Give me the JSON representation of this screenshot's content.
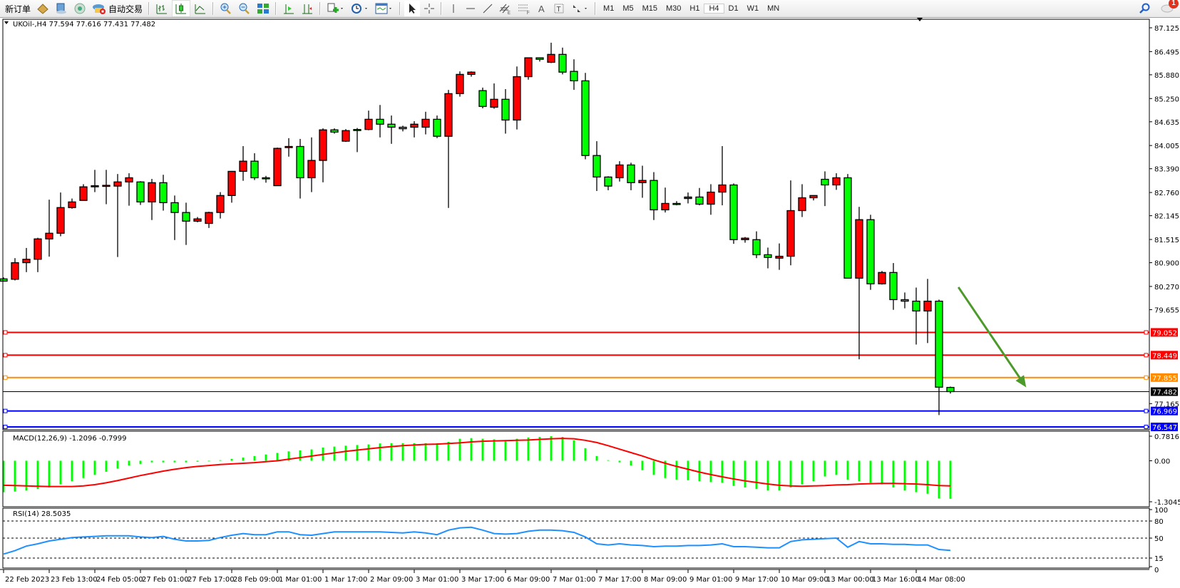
{
  "toolbar": {
    "new_order_label": "新订单",
    "auto_trading_label": "自动交易",
    "icons": [
      "metaeditor-icon",
      "terminal-icon",
      "signals-icon",
      "auto-trading-icon",
      "bar-chart-icon",
      "candlestick-icon",
      "line-chart-icon",
      "zoom-in-icon",
      "zoom-out-icon",
      "tile-windows-icon",
      "auto-scroll-icon",
      "chart-shift-icon",
      "indicators-icon",
      "periods-clock-icon",
      "templates-icon",
      "cursor-icon",
      "crosshair-icon",
      "vertical-line-icon",
      "horizontal-line-icon",
      "trendline-icon",
      "equidistant-channel-icon",
      "fibonacci-icon",
      "text-icon",
      "text-label-icon",
      "arrows-icon"
    ],
    "periods": [
      "M1",
      "M5",
      "M15",
      "M30",
      "H1",
      "H4",
      "D1",
      "W1",
      "MN"
    ],
    "active_period": "H4",
    "notification_count": "1"
  },
  "chart_data": {
    "type": "candlestick",
    "symbol_header": "UKOil-,H4  77.594 77.616 77.431 77.482",
    "up_color": "#ff0000",
    "down_color": "#00ff00",
    "candles_ohlc": [
      [
        80.47,
        80.51,
        80.41,
        80.41
      ],
      [
        80.46,
        81.02,
        80.43,
        80.9
      ],
      [
        80.9,
        81.29,
        80.65,
        80.99
      ],
      [
        80.99,
        81.56,
        80.65,
        81.53
      ],
      [
        81.53,
        82.57,
        81.06,
        81.68
      ],
      [
        81.68,
        82.76,
        81.6,
        82.36
      ],
      [
        82.36,
        82.6,
        82.33,
        82.51
      ],
      [
        82.55,
        82.98,
        82.55,
        82.91
      ],
      [
        82.91,
        83.36,
        82.77,
        82.94
      ],
      [
        82.94,
        83.36,
        82.45,
        82.95
      ],
      [
        82.93,
        83.25,
        81.05,
        83.04
      ],
      [
        83.04,
        83.27,
        82.41,
        83.15
      ],
      [
        83.04,
        83.06,
        82.43,
        82.51
      ],
      [
        82.51,
        83.12,
        82.03,
        83.02
      ],
      [
        83.02,
        83.23,
        82.28,
        82.49
      ],
      [
        82.49,
        82.68,
        81.5,
        82.23
      ],
      [
        82.23,
        82.49,
        81.37,
        82.0
      ],
      [
        82.0,
        82.11,
        81.97,
        82.06
      ],
      [
        81.94,
        82.25,
        81.82,
        82.23
      ],
      [
        82.23,
        82.77,
        82.07,
        82.68
      ],
      [
        82.68,
        83.33,
        82.49,
        83.32
      ],
      [
        83.32,
        83.99,
        83.07,
        83.59
      ],
      [
        83.59,
        83.8,
        83.09,
        83.15
      ],
      [
        83.15,
        83.2,
        83.02,
        83.14
      ],
      [
        82.94,
        83.95,
        82.94,
        83.93
      ],
      [
        83.95,
        84.2,
        83.71,
        83.98
      ],
      [
        83.98,
        84.18,
        82.6,
        83.15
      ],
      [
        83.15,
        84.22,
        82.77,
        83.61
      ],
      [
        83.61,
        84.46,
        83.03,
        84.42
      ],
      [
        84.42,
        84.46,
        84.32,
        84.36
      ],
      [
        84.12,
        84.44,
        84.1,
        84.4
      ],
      [
        84.43,
        84.47,
        83.83,
        84.42
      ],
      [
        84.43,
        84.93,
        84.41,
        84.7
      ],
      [
        84.7,
        85.08,
        84.22,
        84.57
      ],
      [
        84.57,
        84.8,
        84.05,
        84.49
      ],
      [
        84.49,
        84.53,
        84.38,
        84.45
      ],
      [
        84.49,
        84.65,
        84.22,
        84.57
      ],
      [
        84.49,
        84.9,
        84.3,
        84.7
      ],
      [
        84.7,
        84.8,
        84.2,
        84.25
      ],
      [
        84.25,
        85.48,
        82.35,
        85.38
      ],
      [
        85.38,
        85.97,
        85.3,
        85.89
      ],
      [
        85.89,
        85.97,
        85.83,
        85.95
      ],
      [
        85.46,
        85.54,
        84.99,
        85.04
      ],
      [
        85.02,
        85.65,
        84.98,
        85.23
      ],
      [
        85.23,
        85.5,
        84.32,
        84.68
      ],
      [
        84.68,
        86.1,
        84.43,
        85.83
      ],
      [
        85.83,
        86.33,
        85.75,
        86.33
      ],
      [
        86.33,
        86.33,
        86.23,
        86.29
      ],
      [
        86.21,
        86.73,
        86.19,
        86.42
      ],
      [
        86.42,
        86.6,
        85.89,
        85.95
      ],
      [
        85.97,
        86.29,
        85.48,
        85.72
      ],
      [
        85.72,
        85.93,
        83.64,
        83.74
      ],
      [
        83.74,
        84.12,
        82.8,
        83.17
      ],
      [
        83.17,
        83.19,
        82.82,
        82.93
      ],
      [
        83.15,
        83.59,
        83.05,
        83.49
      ],
      [
        83.49,
        83.55,
        82.82,
        83.02
      ],
      [
        83.02,
        83.47,
        82.62,
        83.08
      ],
      [
        83.08,
        83.3,
        82.03,
        82.3
      ],
      [
        82.3,
        82.89,
        82.23,
        82.47
      ],
      [
        82.47,
        82.53,
        82.42,
        82.46
      ],
      [
        82.6,
        82.76,
        82.47,
        82.64
      ],
      [
        82.64,
        82.88,
        82.42,
        82.45
      ],
      [
        82.45,
        82.98,
        82.17,
        82.77
      ],
      [
        82.77,
        83.99,
        82.42,
        82.96
      ],
      [
        82.96,
        83.0,
        81.4,
        81.51
      ],
      [
        81.51,
        81.58,
        81.43,
        81.55
      ],
      [
        81.51,
        81.73,
        81.02,
        81.11
      ],
      [
        81.11,
        81.3,
        80.75,
        81.04
      ],
      [
        81.02,
        81.41,
        80.71,
        81.07
      ],
      [
        81.07,
        83.08,
        80.83,
        82.28
      ],
      [
        82.28,
        82.98,
        82.11,
        82.62
      ],
      [
        82.62,
        82.68,
        82.55,
        82.68
      ],
      [
        83.11,
        83.32,
        82.4,
        82.96
      ],
      [
        82.96,
        83.27,
        82.83,
        83.15
      ],
      [
        83.15,
        83.25,
        80.49,
        80.49
      ],
      [
        80.49,
        82.38,
        78.34,
        82.04
      ],
      [
        82.04,
        82.17,
        80.18,
        80.34
      ],
      [
        80.34,
        80.68,
        80.32,
        80.64
      ],
      [
        80.64,
        80.89,
        79.65,
        79.92
      ],
      [
        79.92,
        80.11,
        79.69,
        79.88
      ],
      [
        79.88,
        80.24,
        78.73,
        79.62
      ],
      [
        79.62,
        80.47,
        78.77,
        79.88
      ],
      [
        79.88,
        79.92,
        76.86,
        77.6
      ],
      [
        77.594,
        77.616,
        77.431,
        77.482
      ]
    ],
    "price_ticks": [
      "87.125",
      "86.495",
      "85.880",
      "85.250",
      "84.635",
      "84.005",
      "83.390",
      "82.760",
      "82.145",
      "81.515",
      "80.900",
      "80.270",
      "79.655",
      "77.165"
    ],
    "time_labels": [
      "22 Feb 2023",
      "23 Feb 13:00",
      "24 Feb 05:00",
      "27 Feb 01:00",
      "27 Feb 17:00",
      "28 Feb 09:00",
      "1 Mar 01:00",
      "1 Mar 17:00",
      "2 Mar 09:00",
      "3 Mar 01:00",
      "3 Mar 17:00",
      "6 Mar 09:00",
      "7 Mar 01:00",
      "7 Mar 17:00",
      "8 Mar 09:00",
      "9 Mar 01:00",
      "9 Mar 17:00",
      "10 Mar 09:00",
      "13 Mar 00:00",
      "13 Mar 16:00",
      "14 Mar 08:00"
    ],
    "horizontal_lines": [
      {
        "price": 79.052,
        "label": "79.052",
        "color": "#ff0000"
      },
      {
        "price": 78.449,
        "label": "78.449",
        "color": "#ff0000"
      },
      {
        "price": 77.855,
        "label": "77.855",
        "color": "#ff8c00"
      },
      {
        "price": 77.482,
        "label": "77.482",
        "color": "#000000",
        "thin": true
      },
      {
        "price": 76.969,
        "label": "76.969",
        "color": "#0000ff"
      },
      {
        "price": 76.547,
        "label": "76.547",
        "color": "#0000ff"
      }
    ],
    "trend_arrow": {
      "color": "#4c9a2a",
      "from_price": 80.25,
      "to_price": 77.66,
      "from_bar": 83.7,
      "to_bar": 89.5
    },
    "macd": {
      "label": "MACD(12,26,9) -1.2096 -0.7999",
      "ticks": [
        "0.7816",
        "0.00",
        "-1.3045"
      ],
      "range": [
        -1.3045,
        0.7816
      ],
      "histogram_color": "#00ff00",
      "signal_color": "#ff0000",
      "histogram": [
        -1.0,
        -0.98,
        -0.95,
        -0.9,
        -0.85,
        -0.75,
        -0.65,
        -0.55,
        -0.45,
        -0.35,
        -0.25,
        -0.15,
        -0.1,
        -0.05,
        -0.05,
        -0.05,
        -0.05,
        -0.03,
        -0.02,
        0.02,
        0.06,
        0.1,
        0.15,
        0.2,
        0.25,
        0.3,
        0.33,
        0.36,
        0.42,
        0.45,
        0.48,
        0.5,
        0.52,
        0.55,
        0.56,
        0.56,
        0.56,
        0.56,
        0.56,
        0.6,
        0.7,
        0.72,
        0.7,
        0.68,
        0.66,
        0.7,
        0.74,
        0.76,
        0.78,
        0.76,
        0.65,
        0.4,
        0.15,
        0.02,
        -0.05,
        -0.15,
        -0.3,
        -0.45,
        -0.55,
        -0.6,
        -0.62,
        -0.65,
        -0.68,
        -0.7,
        -0.8,
        -0.85,
        -0.9,
        -0.95,
        -0.95,
        -0.85,
        -0.75,
        -0.65,
        -0.5,
        -0.45,
        -0.6,
        -0.65,
        -0.7,
        -0.75,
        -0.85,
        -0.95,
        -1.0,
        -1.05,
        -1.2,
        -1.2096
      ],
      "signal": [
        -0.78,
        -0.79,
        -0.8,
        -0.81,
        -0.82,
        -0.82,
        -0.82,
        -0.8,
        -0.76,
        -0.7,
        -0.63,
        -0.55,
        -0.47,
        -0.4,
        -0.33,
        -0.27,
        -0.22,
        -0.18,
        -0.15,
        -0.12,
        -0.1,
        -0.08,
        -0.06,
        -0.03,
        0.0,
        0.05,
        0.1,
        0.15,
        0.2,
        0.25,
        0.3,
        0.34,
        0.38,
        0.42,
        0.45,
        0.48,
        0.5,
        0.52,
        0.53,
        0.55,
        0.57,
        0.6,
        0.62,
        0.63,
        0.64,
        0.65,
        0.66,
        0.68,
        0.7,
        0.71,
        0.7,
        0.65,
        0.58,
        0.48,
        0.37,
        0.26,
        0.15,
        0.03,
        -0.08,
        -0.18,
        -0.27,
        -0.36,
        -0.44,
        -0.51,
        -0.58,
        -0.64,
        -0.69,
        -0.74,
        -0.78,
        -0.8,
        -0.81,
        -0.8,
        -0.79,
        -0.77,
        -0.76,
        -0.74,
        -0.73,
        -0.72,
        -0.72,
        -0.73,
        -0.74,
        -0.76,
        -0.79,
        -0.7999
      ]
    },
    "rsi": {
      "label": "RSI(14) 28.5035",
      "ticks": [
        "100",
        "80",
        "50",
        "15",
        "0"
      ],
      "levels": [
        80,
        50,
        15
      ],
      "range": [
        0,
        100
      ],
      "color": "#1e90ff",
      "values": [
        22,
        28,
        36,
        40,
        45,
        48,
        51,
        52,
        53,
        54,
        54,
        54,
        52,
        51,
        53,
        48,
        45,
        45,
        46,
        51,
        55,
        58,
        56,
        56,
        61,
        61,
        56,
        55,
        58,
        61,
        61,
        61,
        61,
        61,
        60,
        59,
        61,
        59,
        56,
        64,
        68,
        69,
        64,
        58,
        57,
        58,
        62,
        64,
        64,
        63,
        60,
        52,
        40,
        38,
        40,
        38,
        37,
        35,
        36,
        36,
        37,
        37,
        38,
        40,
        35,
        35,
        34,
        33,
        33,
        44,
        47,
        48,
        49,
        50,
        34,
        44,
        40,
        40,
        39,
        39,
        38,
        38,
        30,
        28.5
      ]
    }
  }
}
